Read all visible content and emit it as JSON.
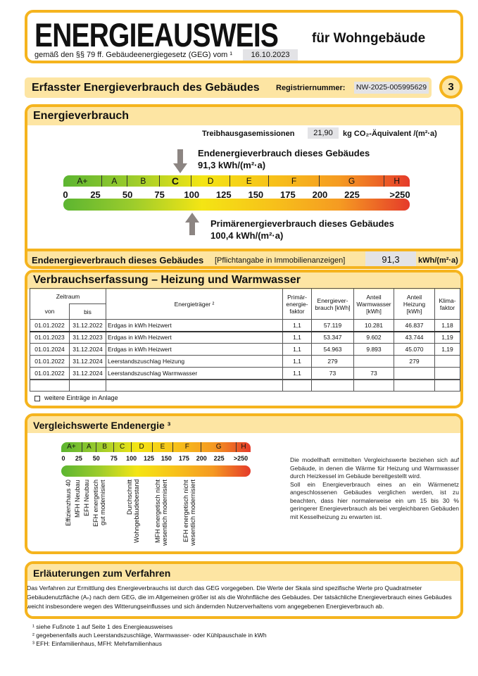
{
  "header": {
    "title": "ENERGIEAUSWEIS",
    "subtitle": "für Wohngebäude",
    "legal": "gemäß den §§ 79 ff. Gebäudeenergiegesetz (GEG) vom ¹",
    "date": "16.10.2023"
  },
  "section_bar": {
    "title": "Erfasster Energieverbrauch des Gebäudes",
    "reg_label": "Registriernummer:",
    "reg_value": "NW-2025-005995629",
    "page": "3"
  },
  "energy": {
    "title": "Energieverbrauch",
    "ghg_label": "Treibhausgasemissionen",
    "ghg_value": "21,90",
    "ghg_unit": "kg CO₂-Äquivalent /(m²·a)",
    "end_label": "Endenergieverbrauch dieses Gebäudes",
    "end_text": "91,3 kWh/(m²·a)",
    "end_value": 91.3,
    "primary_label": "Primärenergieverbrauch dieses Gebäudes",
    "primary_text": "100,4 kWh/(m²·a)",
    "primary_value": 100.4,
    "current_class": "C"
  },
  "scale": {
    "classes": [
      {
        "label": "A+",
        "from": 0,
        "to": 30
      },
      {
        "label": "A",
        "from": 30,
        "to": 50
      },
      {
        "label": "B",
        "from": 50,
        "to": 75
      },
      {
        "label": "C",
        "from": 75,
        "to": 100
      },
      {
        "label": "D",
        "from": 100,
        "to": 130
      },
      {
        "label": "E",
        "from": 130,
        "to": 160
      },
      {
        "label": "F",
        "from": 160,
        "to": 200
      },
      {
        "label": "G",
        "from": 200,
        "to": 250
      },
      {
        "label": "H",
        "from": 250,
        "to": 270
      }
    ],
    "ticks": [
      "0",
      "25",
      "50",
      "75",
      "100",
      "125",
      "150",
      "175",
      "200",
      "225",
      ">250"
    ]
  },
  "end_row": {
    "label": "Endenergieverbrauch dieses Gebäudes",
    "note": "[Pflichtangabe in Immobilienanzeigen]",
    "value": "91,3",
    "unit": "kWh/(m²·a)"
  },
  "consumption": {
    "title": "Verbrauchserfassung – Heizung und Warmwasser",
    "headers": {
      "zeitraum": "Zeitraum",
      "von": "von",
      "bis": "bis",
      "traeger": "Energieträger ²",
      "faktor": "Primär-energie-faktor",
      "verbrauch": "Energiever-brauch [kWh]",
      "ww": "Anteil Warmwasser [kWh]",
      "heizung": "Anteil Heizung [kWh]",
      "klima": "Klima-faktor"
    },
    "rows": [
      [
        "01.01.2022",
        "31.12.2022",
        "Erdgas in kWh Heizwert",
        "1,1",
        "57.119",
        "10.281",
        "46.837",
        "1,18"
      ],
      [
        "01.01.2023",
        "31.12.2023",
        "Erdgas in kWh Heizwert",
        "1,1",
        "53.347",
        "9.602",
        "43.744",
        "1,19"
      ],
      [
        "01.01.2024",
        "31.12.2024",
        "Erdgas in kWh Heizwert",
        "1,1",
        "54.963",
        "9.893",
        "45.070",
        "1,19"
      ],
      [
        "01.01.2022",
        "31.12.2024",
        "Leerstandszuschlag Heizung",
        "1,1",
        "279",
        "",
        "279",
        ""
      ],
      [
        "01.01.2022",
        "31.12.2024",
        "Leerstandszuschlag Warmwasser",
        "1,1",
        "73",
        "73",
        "",
        ""
      ],
      [
        "",
        "",
        "",
        "",
        "",
        "",
        "",
        ""
      ]
    ],
    "more_label": "weitere Einträge in Anlage"
  },
  "comparison": {
    "title": "Vergleichswerte Endenergie ³",
    "labels": [
      "Effizienzhaus 40",
      "MFH Neubau",
      "EFH Neubau",
      "EFH energetisch\ngut modernisiert",
      "Durchschnitt\nWohngebäudebestand",
      "MFH energetisch nicht\nwesentlich modernisiert",
      "EFH energetisch nicht\nwesentlich modernisiert"
    ],
    "text1": "Die modellhaft ermittelten Vergleichswerte beziehen sich auf Gebäude, in denen die Wärme für Heizung und Warmwasser durch Heizkessel im Gebäude bereitgestellt wird.",
    "text2": "Soll ein Energieverbrauch eines an ein Wärmenetz angeschlossenen Gebäudes verglichen werden, ist zu beachten, dass hier normalerweise ein um 15 bis 30 % geringerer Energieverbrauch als bei vergleichbaren Gebäuden mit Kesselheizung zu erwarten ist."
  },
  "explanation": {
    "title": "Erläuterungen zum Verfahren",
    "text": "Das Verfahren zur Ermittlung des Energieverbrauchs ist durch das GEG vorgegeben. Die Werte der Skala sind spezifische Werte pro Quadratmeter Gebäudenutzfläche (Aₙ) nach dem GEG, die im Allgemeinen größer ist als die Wohnfläche des Gebäudes. Der tatsächliche Energieverbrauch eines Gebäudes weicht insbesondere wegen des Witterungseinflusses und sich ändernden Nutzerverhaltens vom angegebenen Energieverbrauch ab."
  },
  "footnotes": [
    "¹ siehe Fußnote 1 auf Seite 1 des Energieausweises",
    "² gegebenenfalls auch Leerstandszuschläge, Warmwasser- oder Kühlpauschale in kWh",
    "³ EFH: Einfamilienhaus, MFH: Mehrfamilienhaus"
  ],
  "colors": {
    "border": "#f5b41e",
    "band": "#fde5a3",
    "arrow": "#8c8582"
  }
}
